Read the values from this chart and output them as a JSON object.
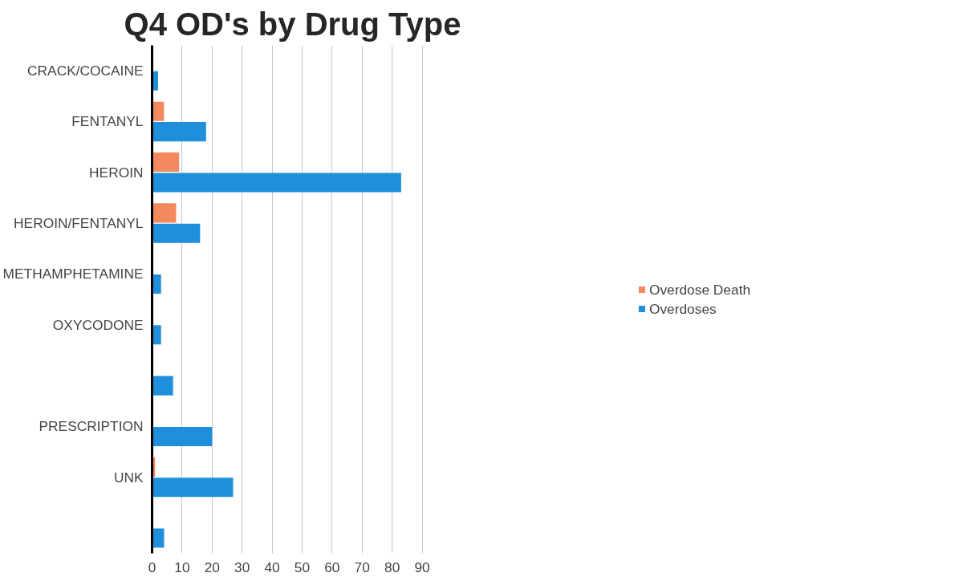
{
  "chart_data": {
    "type": "bar",
    "orientation": "horizontal",
    "title": "Q4 OD's by Drug Type",
    "categories": [
      "CRACK/COCAINE",
      "FENTANYL",
      "HEROIN",
      "HEROIN/FENTANYL",
      "METHAMPHETAMINE",
      "OXYCODONE",
      null,
      "PRESCRIPTION",
      "UNK",
      null
    ],
    "series": [
      {
        "name": "Overdose Death",
        "color": "#f4895f",
        "values": [
          0,
          4,
          9,
          8,
          0,
          0,
          0,
          0,
          1,
          0
        ]
      },
      {
        "name": "Overdoses",
        "color": "#1f8fdb",
        "values": [
          2,
          18,
          83,
          16,
          3,
          3,
          7,
          20,
          27,
          4
        ]
      }
    ],
    "xlim": [
      0,
      90
    ],
    "xticks": [
      0,
      10,
      20,
      30,
      40,
      50,
      60,
      70,
      80,
      90
    ],
    "grid": "x",
    "legend": "right"
  }
}
